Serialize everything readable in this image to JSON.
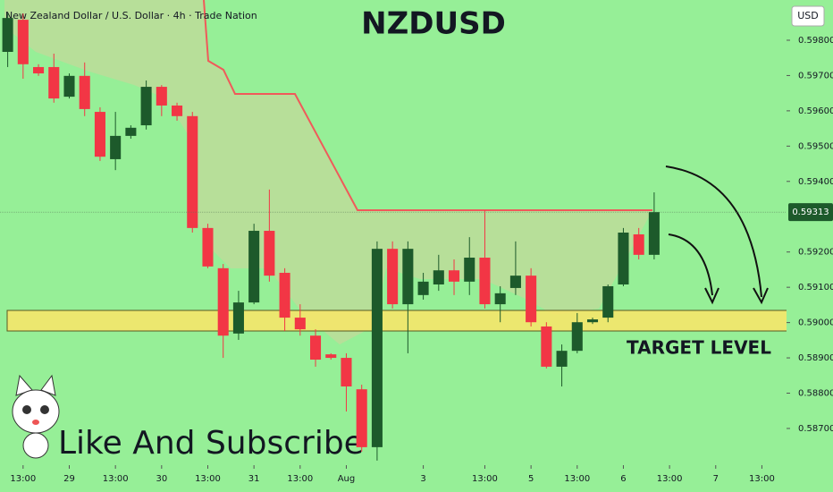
{
  "chart_data": {
    "type": "candlestick",
    "title": "NZDUSD",
    "subtitle": "New Zealand Dollar / U.S. Dollar · 4h · Trade Nation",
    "currency": "USD",
    "annotations": [
      "TARGET LEVEL",
      "Like And Subscribe"
    ],
    "up_color": "#1d5a2b",
    "down_color": "#f23645",
    "open": [
      0.59767,
      0.59858,
      0.59724,
      0.59724,
      0.5964,
      0.59699,
      0.59597,
      0.59463,
      0.59529,
      0.59559,
      0.59668,
      0.59615,
      0.59585,
      0.59268,
      0.59154,
      0.58969,
      0.59057,
      0.5926,
      0.59141,
      0.59014,
      0.58963,
      0.5891,
      0.589,
      0.58811,
      0.58647,
      0.59209,
      0.59052,
      0.59078,
      0.59108,
      0.59148,
      0.59116,
      0.59184,
      0.59052,
      0.59098,
      0.59133,
      0.58989,
      0.58875,
      0.5892,
      0.59001,
      0.59014,
      0.59108,
      0.5925,
      0.59192
    ],
    "high": [
      0.59876,
      0.59876,
      0.59732,
      0.59762,
      0.59706,
      0.59737,
      0.5961,
      0.59597,
      0.59559,
      0.59686,
      0.59673,
      0.59623,
      0.59597,
      0.5928,
      0.59166,
      0.5909,
      0.5928,
      0.59377,
      0.59154,
      0.59052,
      0.58981,
      0.58913,
      0.58913,
      0.58824,
      0.5923,
      0.5923,
      0.5923,
      0.59141,
      0.59192,
      0.59179,
      0.59242,
      0.59318,
      0.59103,
      0.5923,
      0.59154,
      0.59001,
      0.58938,
      0.59027,
      0.59014,
      0.59108,
      0.59268,
      0.59268,
      0.59369
    ],
    "low": [
      0.59724,
      0.59691,
      0.59699,
      0.59623,
      0.59635,
      0.59585,
      0.59458,
      0.59432,
      0.59521,
      0.59547,
      0.59585,
      0.59572,
      0.59255,
      0.59154,
      0.589,
      0.58951,
      0.59052,
      0.59116,
      0.58976,
      0.58963,
      0.58875,
      0.58895,
      0.58748,
      0.58634,
      0.58609,
      0.5904,
      0.58913,
      0.59065,
      0.5909,
      0.59078,
      0.59078,
      0.5904,
      0.59001,
      0.59078,
      0.58989,
      0.5887,
      0.58819,
      0.58913,
      0.58996,
      0.59001,
      0.59103,
      0.59179,
      0.59179
    ],
    "close": [
      0.59863,
      0.59732,
      0.59706,
      0.59635,
      0.59699,
      0.59605,
      0.5947,
      0.59529,
      0.59552,
      0.59668,
      0.59615,
      0.59585,
      0.59268,
      0.59159,
      0.58963,
      0.59057,
      0.5926,
      0.59133,
      0.59014,
      0.58981,
      0.58895,
      0.589,
      0.58819,
      0.58647,
      0.59209,
      0.59052,
      0.59209,
      0.59116,
      0.59148,
      0.59116,
      0.59184,
      0.59052,
      0.59083,
      0.59133,
      0.59001,
      0.58875,
      0.5892,
      0.59001,
      0.59009,
      0.59103,
      0.59255,
      0.59192,
      0.59313
    ],
    "current_price": 0.59313,
    "xlim": [
      -0.5,
      50.6
    ],
    "xticks": [
      {
        "value": 1,
        "label": "13:00"
      },
      {
        "value": 4,
        "label": "29"
      },
      {
        "value": 7,
        "label": "13:00"
      },
      {
        "value": 10,
        "label": "30"
      },
      {
        "value": 13,
        "label": "13:00"
      },
      {
        "value": 16,
        "label": "31"
      },
      {
        "value": 19,
        "label": "13:00"
      },
      {
        "value": 22,
        "label": "Aug"
      },
      {
        "value": 27,
        "label": "3"
      },
      {
        "value": 31,
        "label": "13:00"
      },
      {
        "value": 34,
        "label": "5"
      },
      {
        "value": 37,
        "label": "13:00"
      },
      {
        "value": 40,
        "label": "6"
      },
      {
        "value": 43,
        "label": "13:00"
      },
      {
        "value": 46,
        "label": "7"
      },
      {
        "value": 49,
        "label": "13:00"
      }
    ],
    "ylim": [
      0.58596,
      0.59914
    ],
    "yticks": [
      {
        "value": 0.598,
        "label": "0.59800"
      },
      {
        "value": 0.597,
        "label": "0.59700"
      },
      {
        "value": 0.596,
        "label": "0.59600"
      },
      {
        "value": 0.595,
        "label": "0.59500"
      },
      {
        "value": 0.594,
        "label": "0.59400"
      },
      {
        "value": 0.592,
        "label": "0.59200"
      },
      {
        "value": 0.591,
        "label": "0.59100"
      },
      {
        "value": 0.59,
        "label": "0.59000"
      },
      {
        "value": 0.589,
        "label": "0.58900"
      },
      {
        "value": 0.588,
        "label": "0.58800"
      },
      {
        "value": 0.587,
        "label": "0.58700"
      }
    ]
  }
}
